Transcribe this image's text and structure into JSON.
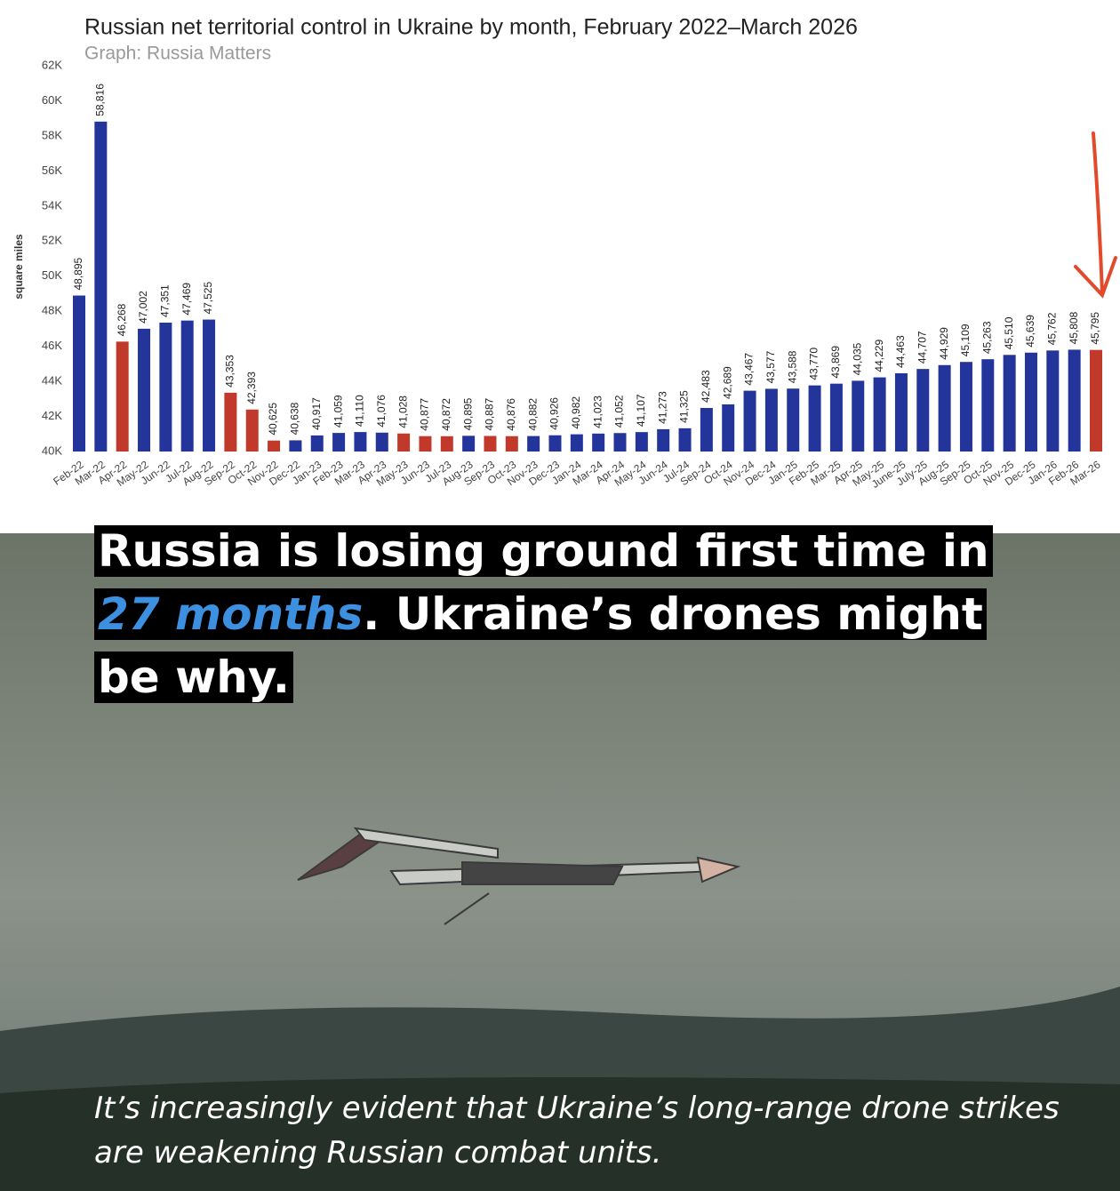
{
  "chart_data": {
    "type": "bar",
    "title": "Russian net territorial control in Ukraine by month, February 2022–March 2026",
    "subtitle": "Graph: Russia Matters",
    "y_label": "square miles",
    "categories": [
      "Feb-22",
      "Mar-22",
      "Apr-22",
      "May-22",
      "Jun-22",
      "Jul-22",
      "Aug-22",
      "Sep-22",
      "Oct-22",
      "Nov-22",
      "Dec-22",
      "Jan-23",
      "Feb-23",
      "Mar-23",
      "Apr-23",
      "May-23",
      "Jun-23",
      "Jul-23",
      "Aug-23",
      "Sep-23",
      "Oct-23",
      "Nov-23",
      "Dec-23",
      "Jan-24",
      "Mar-24",
      "Apr-24",
      "May-24",
      "Jun-24",
      "Jul-24",
      "Sep-24",
      "Oct-24",
      "Nov-24",
      "Dec-24",
      "Jan-25",
      "Feb-25",
      "Mar-25",
      "Apr-25",
      "May-25",
      "June-25",
      "July-25",
      "Aug-25",
      "Sep-25",
      "Oct-25",
      "Nov-25",
      "Dec-25",
      "Jan-26",
      "Feb-26",
      "Mar-26"
    ],
    "values": [
      48895,
      58816,
      46268,
      47002,
      47351,
      47469,
      47525,
      43353,
      42393,
      40625,
      40638,
      40917,
      41059,
      41110,
      41076,
      41028,
      40877,
      40872,
      40895,
      40887,
      40876,
      40882,
      40926,
      40982,
      41023,
      41052,
      41107,
      41273,
      41325,
      42483,
      42689,
      43467,
      43577,
      43588,
      43770,
      43869,
      44035,
      44229,
      44463,
      44707,
      44929,
      45109,
      45263,
      45510,
      45639,
      45762,
      45808,
      45795
    ],
    "value_labels": [
      "48,895",
      "58,816",
      "46,268",
      "47,002",
      "47,351",
      "47,469",
      "47,525",
      "43,353",
      "42,393",
      "40,625",
      "40,638",
      "40,917",
      "41,059",
      "41,110",
      "41,076",
      "41,028",
      "40,877",
      "40,872",
      "40,895",
      "40,887",
      "40,876",
      "40,882",
      "40,926",
      "40,982",
      "41,023",
      "41,052",
      "41,107",
      "41,273",
      "41,325",
      "42,483",
      "42,689",
      "43,467",
      "43,577",
      "43,588",
      "43,770",
      "43,869",
      "44,035",
      "44,229",
      "44,463",
      "44,707",
      "44,929",
      "45,109",
      "45,263",
      "45,510",
      "45,639",
      "45,762",
      "45,808",
      "45,795"
    ],
    "colors": [
      "#23349a",
      "#23349a",
      "#c0392b",
      "#23349a",
      "#23349a",
      "#23349a",
      "#23349a",
      "#c0392b",
      "#c0392b",
      "#c0392b",
      "#23349a",
      "#23349a",
      "#23349a",
      "#23349a",
      "#23349a",
      "#c0392b",
      "#c0392b",
      "#c0392b",
      "#23349a",
      "#c0392b",
      "#c0392b",
      "#23349a",
      "#23349a",
      "#23349a",
      "#23349a",
      "#23349a",
      "#23349a",
      "#23349a",
      "#23349a",
      "#23349a",
      "#23349a",
      "#23349a",
      "#23349a",
      "#23349a",
      "#23349a",
      "#23349a",
      "#23349a",
      "#23349a",
      "#23349a",
      "#23349a",
      "#23349a",
      "#23349a",
      "#23349a",
      "#23349a",
      "#23349a",
      "#23349a",
      "#23349a",
      "#c0392b"
    ],
    "ylim": [
      40000,
      62000
    ],
    "yticks": [
      {
        "value": 40000,
        "label": "40K"
      },
      {
        "value": 42000,
        "label": "42K"
      },
      {
        "value": 44000,
        "label": "44K"
      },
      {
        "value": 46000,
        "label": "46K"
      },
      {
        "value": 48000,
        "label": "48K"
      },
      {
        "value": 50000,
        "label": "50K"
      },
      {
        "value": 52000,
        "label": "52K"
      },
      {
        "value": 54000,
        "label": "54K"
      },
      {
        "value": 56000,
        "label": "56K"
      },
      {
        "value": 58000,
        "label": "58K"
      },
      {
        "value": 60000,
        "label": "60K"
      },
      {
        "value": 62000,
        "label": "62K"
      }
    ],
    "grid": false
  },
  "headline": {
    "parts": [
      "Russia is losing ground first time in ",
      "27 months",
      ". Ukraine’s drones might be why."
    ]
  },
  "caption": "It’s increasingly evident that Ukraine’s long-range drone strikes are weakening Russian combat units."
}
